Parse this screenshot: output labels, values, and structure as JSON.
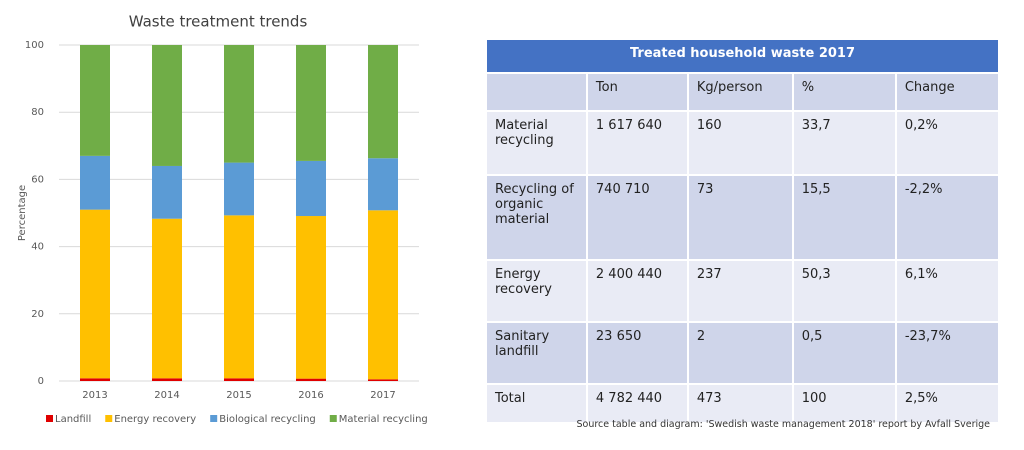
{
  "chart_data": {
    "type": "stacked_bar",
    "title": "Waste treatment trends",
    "y_label": "Percentage",
    "categories": [
      "2013",
      "2014",
      "2015",
      "2016",
      "2017"
    ],
    "series": [
      {
        "name": "Landfill",
        "color": "#e00000",
        "values": [
          0.8,
          0.8,
          0.8,
          0.7,
          0.5
        ]
      },
      {
        "name": "Energy recovery",
        "color": "#ffc000",
        "values": [
          50.2,
          47.5,
          48.5,
          48.4,
          50.3
        ]
      },
      {
        "name": "Biological recycling",
        "color": "#5b9bd5",
        "values": [
          16,
          15.7,
          15.7,
          16.4,
          15.5
        ]
      },
      {
        "name": "Material recycling",
        "color": "#70ad47",
        "values": [
          33,
          36,
          35,
          34.5,
          33.7
        ]
      }
    ],
    "ylim": [
      0,
      100
    ],
    "yticks": [
      0,
      20,
      40,
      60,
      80,
      100
    ],
    "grid": true,
    "legend": "bottom"
  },
  "table": {
    "title": "Treated household waste 2017",
    "columns": [
      "Ton",
      "Kg/person",
      "%",
      "Change"
    ],
    "rows": [
      [
        "Material recycling",
        "1 617 640",
        "160",
        "33,7",
        "0,2%"
      ],
      [
        "Recycling of organic material",
        "740 710",
        "73",
        "15,5",
        "-2,2%"
      ],
      [
        "Energy recovery",
        "2 400 440",
        "237",
        "50,3",
        "6,1%"
      ],
      [
        "Sanitary landfill",
        "23 650",
        "2",
        "0,5",
        "-23,7%"
      ],
      [
        "Total",
        "4 782 440",
        "473",
        "100",
        "2,5%"
      ]
    ]
  },
  "source": "Source table and diagram: 'Swedish waste management 2018' report by Avfall Sverige"
}
